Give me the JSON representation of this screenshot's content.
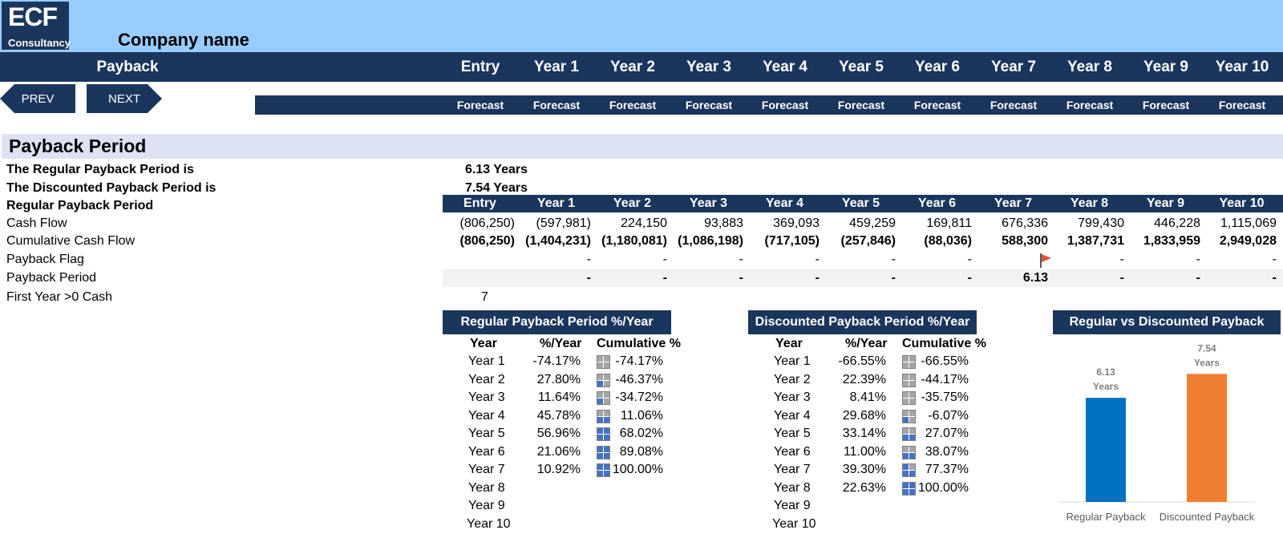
{
  "logo": {
    "main": "ECF",
    "sub": "Consultancy"
  },
  "company_name": "Company name",
  "header": {
    "section": "Payback",
    "columns": [
      "Entry",
      "Year 1",
      "Year 2",
      "Year 3",
      "Year 4",
      "Year 5",
      "Year 6",
      "Year 7",
      "Year 8",
      "Year 9",
      "Year 10"
    ],
    "subtitle": "Forecast"
  },
  "nav": {
    "prev": "PREV",
    "next": "NEXT"
  },
  "section_title": "Payback Period",
  "summary": {
    "regular_label": "The Regular Payback Period is",
    "regular_value": "6.13 Years",
    "discounted_label": "The Discounted Payback Period is",
    "discounted_value": "7.54 Years"
  },
  "table": {
    "title": "Regular Payback Period",
    "columns": [
      "Entry",
      "Year 1",
      "Year 2",
      "Year 3",
      "Year 4",
      "Year 5",
      "Year 6",
      "Year 7",
      "Year 8",
      "Year 9",
      "Year 10"
    ],
    "rows": [
      {
        "label": "Cash Flow",
        "bold": false,
        "values": [
          "(806,250)",
          "(597,981)",
          "224,150",
          "93,883",
          "369,093",
          "459,259",
          "169,811",
          "676,336",
          "799,430",
          "446,228",
          "1,115,069"
        ]
      },
      {
        "label": "Cumulative Cash Flow",
        "bold": true,
        "values": [
          "(806,250)",
          "(1,404,231)",
          "(1,180,081)",
          "(1,086,198)",
          "(717,105)",
          "(257,846)",
          "(88,036)",
          "588,300",
          "1,387,731",
          "1,833,959",
          "2,949,028"
        ]
      },
      {
        "label": "Payback Flag",
        "bold": false,
        "values": [
          "",
          "-",
          "-",
          "-",
          "-",
          "-",
          "-",
          "flag",
          "-",
          "-",
          "-"
        ]
      },
      {
        "label": "Payback Period",
        "bold": true,
        "values": [
          "",
          "-",
          "-",
          "-",
          "-",
          "-",
          "-",
          "6.13",
          "-",
          "-",
          "-"
        ]
      }
    ],
    "first_year_label": "First Year >0 Cash",
    "first_year_value": "7"
  },
  "regular_panel": {
    "title": "Regular Payback Period %/Year",
    "headers": [
      "Year",
      "%/Year",
      "Cumulative %"
    ],
    "rows": [
      {
        "year": "Year 1",
        "pct": "-74.17%",
        "cum": "-74.17%",
        "fill": 0
      },
      {
        "year": "Year 2",
        "pct": "27.80%",
        "cum": "-46.37%",
        "fill": 1
      },
      {
        "year": "Year 3",
        "pct": "11.64%",
        "cum": "-34.72%",
        "fill": 1
      },
      {
        "year": "Year 4",
        "pct": "45.78%",
        "cum": "11.06%",
        "fill": 2
      },
      {
        "year": "Year 5",
        "pct": "56.96%",
        "cum": "68.02%",
        "fill": 4
      },
      {
        "year": "Year 6",
        "pct": "21.06%",
        "cum": "89.08%",
        "fill": 4
      },
      {
        "year": "Year 7",
        "pct": "10.92%",
        "cum": "100.00%",
        "fill": 4
      },
      {
        "year": "Year 8",
        "pct": "",
        "cum": "",
        "fill": -1
      },
      {
        "year": "Year 9",
        "pct": "",
        "cum": "",
        "fill": -1
      },
      {
        "year": "Year 10",
        "pct": "",
        "cum": "",
        "fill": -1
      }
    ]
  },
  "discounted_panel": {
    "title": "Discounted Payback Period %/Year",
    "headers": [
      "Year",
      "%/Year",
      "Cumulative %"
    ],
    "rows": [
      {
        "year": "Year 1",
        "pct": "-66.55%",
        "cum": "-66.55%",
        "fill": 0
      },
      {
        "year": "Year 2",
        "pct": "22.39%",
        "cum": "-44.17%",
        "fill": 0
      },
      {
        "year": "Year 3",
        "pct": "8.41%",
        "cum": "-35.75%",
        "fill": 0
      },
      {
        "year": "Year 4",
        "pct": "29.68%",
        "cum": "-6.07%",
        "fill": 1
      },
      {
        "year": "Year 5",
        "pct": "33.14%",
        "cum": "27.07%",
        "fill": 2
      },
      {
        "year": "Year 6",
        "pct": "11.00%",
        "cum": "38.07%",
        "fill": 2
      },
      {
        "year": "Year 7",
        "pct": "39.30%",
        "cum": "77.37%",
        "fill": 3
      },
      {
        "year": "Year 8",
        "pct": "22.63%",
        "cum": "100.00%",
        "fill": 4
      },
      {
        "year": "Year 9",
        "pct": "",
        "cum": "",
        "fill": -1
      },
      {
        "year": "Year 10",
        "pct": "",
        "cum": "",
        "fill": -1
      }
    ]
  },
  "chart_panel": {
    "title": "Regular vs Discounted Payback"
  },
  "chart_data": {
    "type": "bar",
    "categories": [
      "Regular Payback",
      "Discounted Payback"
    ],
    "values": [
      6.13,
      7.54
    ],
    "data_labels": [
      "6.13 Years",
      "7.54 Years"
    ],
    "colors": [
      "#0070c0",
      "#ed7d31"
    ],
    "ylim": [
      0,
      8.5
    ],
    "grid": false
  },
  "colors": {
    "navy": "#1b365d",
    "sky": "#99ccff",
    "section": "#dde3f3"
  }
}
